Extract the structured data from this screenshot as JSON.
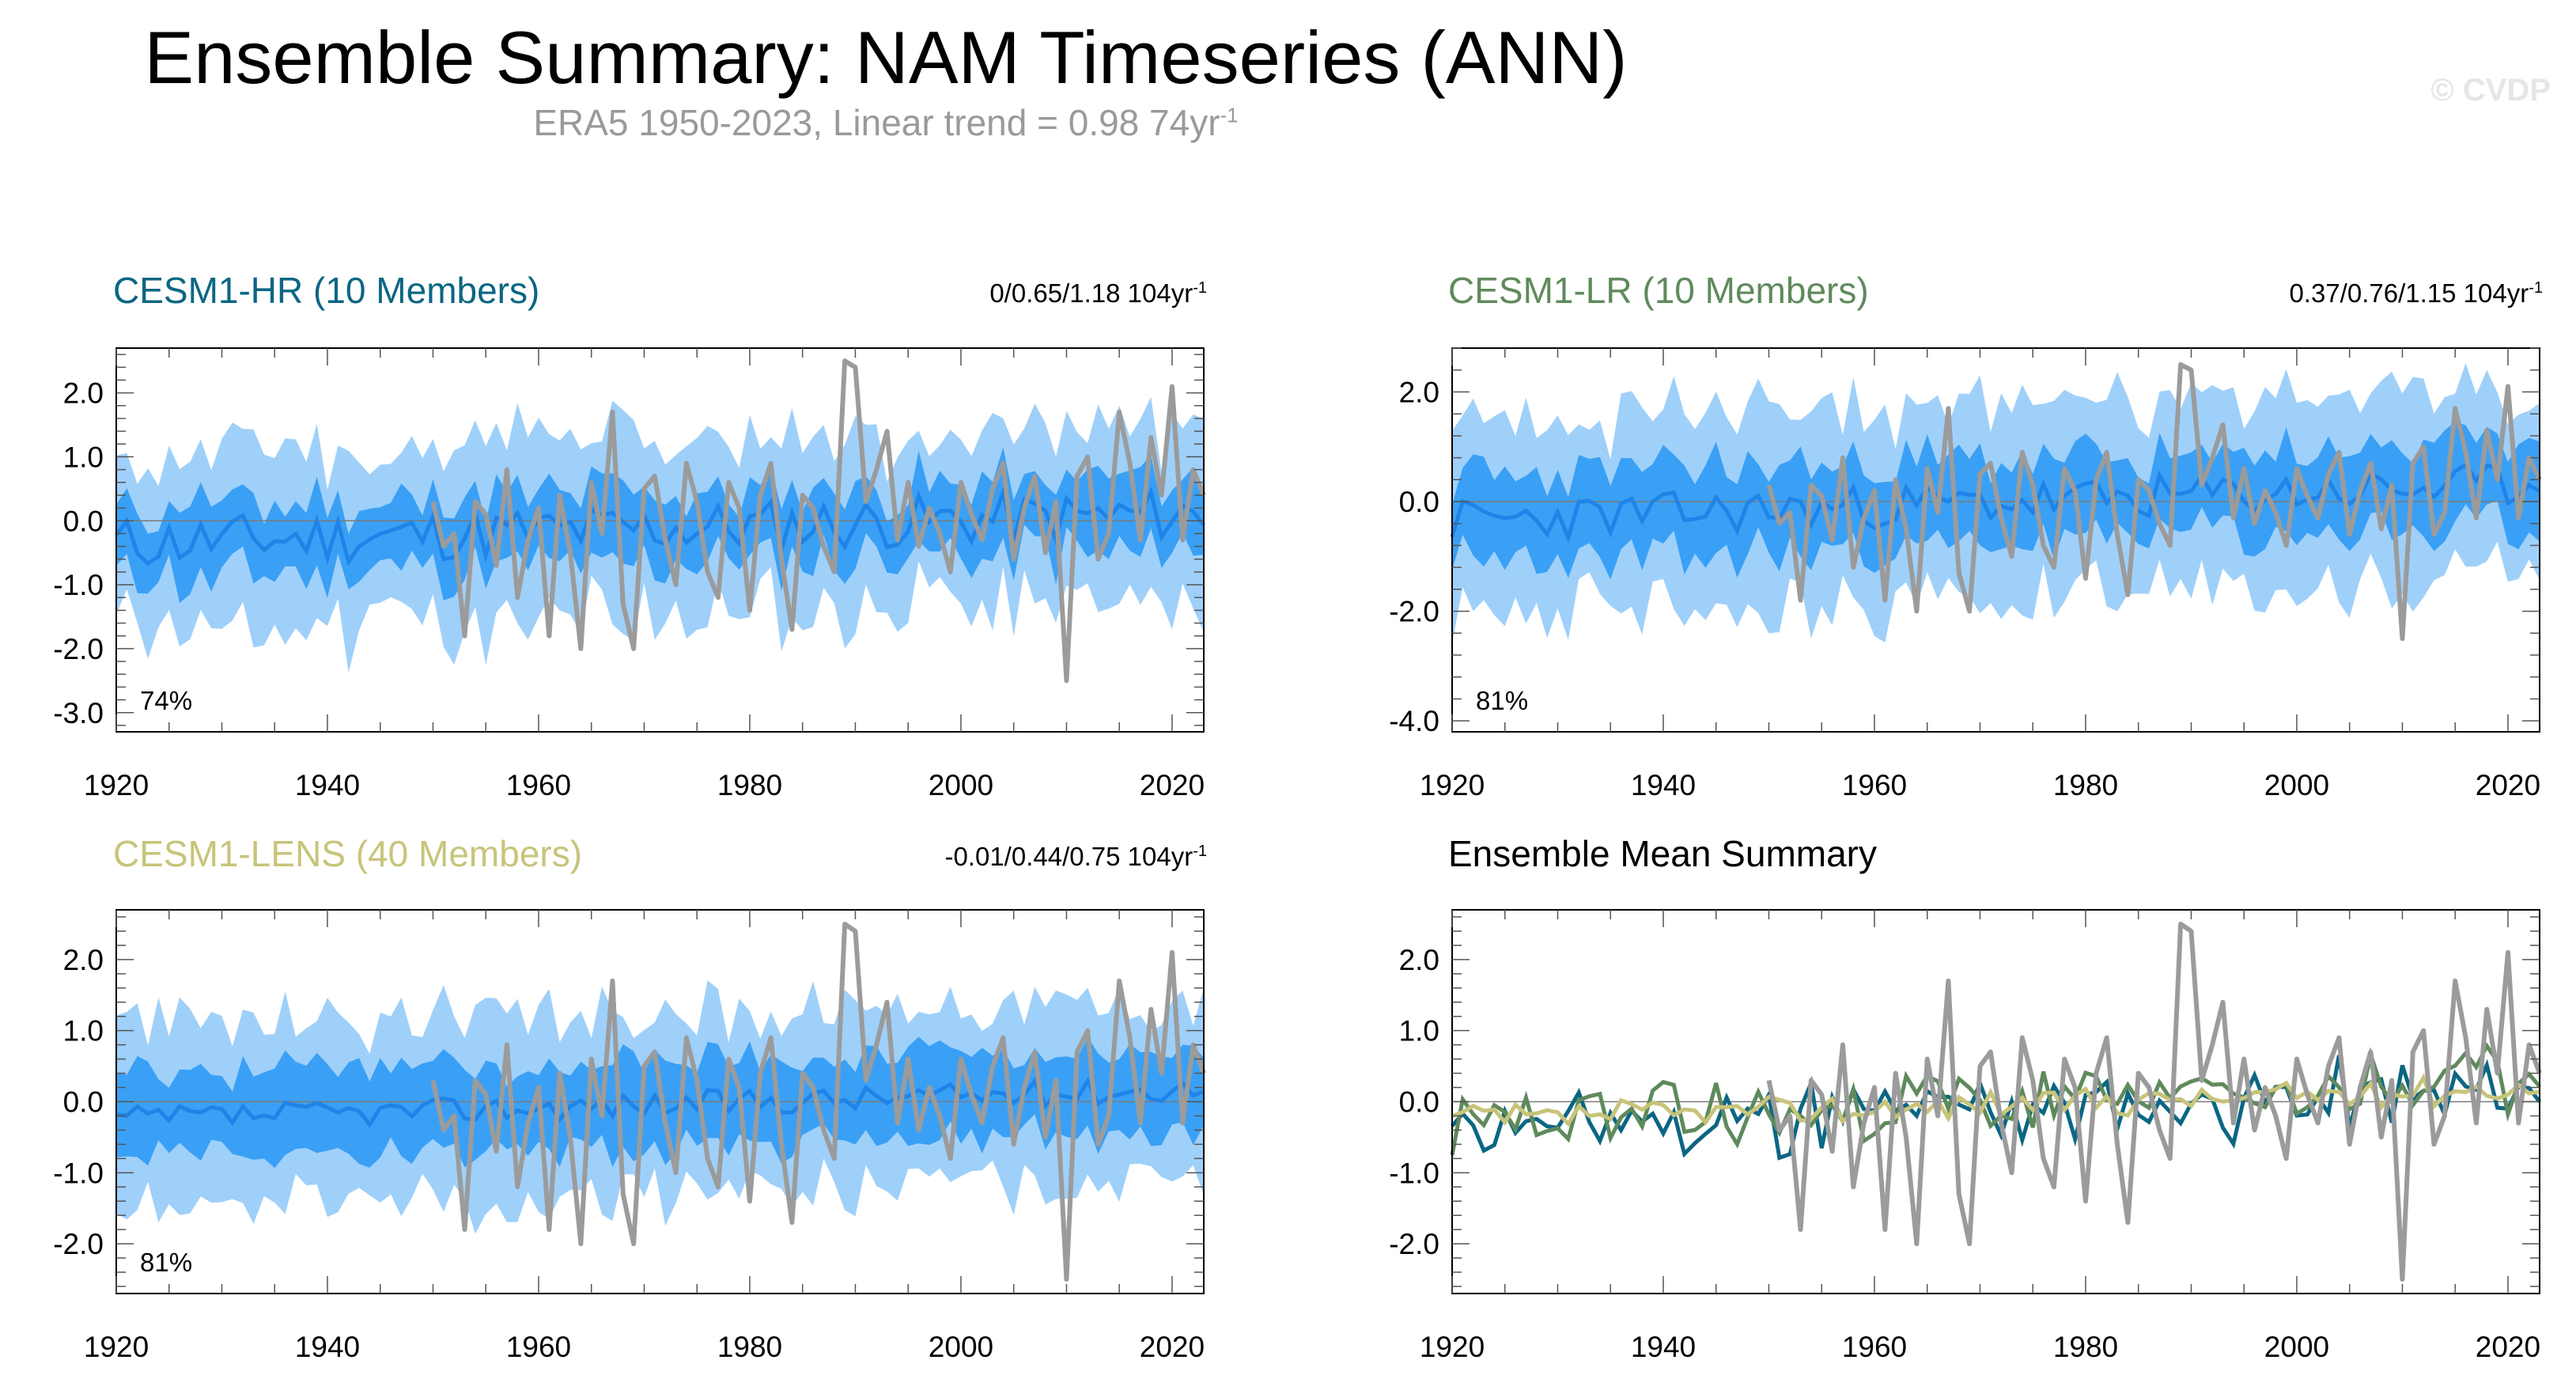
{
  "header": {
    "title": "Ensemble Summary: NAM Timeseries (ANN)",
    "subtitle_main": "ERA5 1950-2023, Linear trend = 0.98 74yr",
    "subtitle_sup": "-1",
    "watermark": "© CVDP"
  },
  "colors": {
    "hr": "#0b6683",
    "lr": "#5f8a5c",
    "lens": "#c8c47a",
    "obs": "#9b9b9b",
    "band_outer": "#9fd0fa",
    "band_inner": "#3aa0f5",
    "ens_mean": "#1f84e8"
  },
  "chart_data": [
    {
      "id": "hr",
      "type": "area",
      "title": "CESM1-HR (10 Members)",
      "trend_text": "0/0.65/1.18 104yr",
      "trend_sup": "-1",
      "pct_label": "74%",
      "xlim": [
        1920,
        2023
      ],
      "ylim": [
        -3.3,
        2.7
      ],
      "yticks": [
        -3.0,
        -2.0,
        -1.0,
        0.0,
        1.0,
        2.0
      ],
      "ytick_labels": [
        "-3.0",
        "-2.0",
        "-1.0",
        "0.0",
        "1.0",
        "2.0"
      ],
      "xticks": [
        1920,
        1940,
        1960,
        1980,
        2000,
        2020
      ],
      "xtick_labels": [
        "1920",
        "1940",
        "1960",
        "1980",
        "2000",
        "2020"
      ],
      "seed": 11,
      "trend": 0.0045,
      "offset": -0.35,
      "inner": 0.55,
      "outer": 1.35,
      "noise": 0.42
    },
    {
      "id": "lr",
      "type": "area",
      "title": "CESM1-LR (10 Members)",
      "trend_text": "0.37/0.76/1.15 104yr",
      "trend_sup": "-1",
      "pct_label": "81%",
      "xlim": [
        1920,
        2023
      ],
      "ylim": [
        -4.2,
        2.8
      ],
      "yticks": [
        -4.0,
        -2.0,
        0.0,
        2.0
      ],
      "ytick_labels": [
        "-4.0",
        "-2.0",
        "0.0",
        "2.0"
      ],
      "xticks": [
        1920,
        1940,
        1960,
        1980,
        2000,
        2020
      ],
      "xtick_labels": [
        "1920",
        "1940",
        "1960",
        "1980",
        "2000",
        "2020"
      ],
      "seed": 23,
      "trend": 0.0065,
      "offset": -0.35,
      "inner": 0.8,
      "outer": 1.7,
      "noise": 0.4
    },
    {
      "id": "lens",
      "type": "area",
      "title": "CESM1-LENS (40 Members)",
      "trend_text": "-0.01/0.44/0.75 104yr",
      "trend_sup": "-1",
      "pct_label": "81%",
      "xlim": [
        1920,
        2023
      ],
      "ylim": [
        -2.7,
        2.7
      ],
      "yticks": [
        -2.0,
        -1.0,
        0.0,
        1.0,
        2.0
      ],
      "ytick_labels": [
        "-2.0",
        "-1.0",
        "0.0",
        "1.0",
        "2.0"
      ],
      "xticks": [
        1920,
        1940,
        1960,
        1980,
        2000,
        2020
      ],
      "xtick_labels": [
        "1920",
        "1940",
        "1960",
        "1980",
        "2000",
        "2020"
      ],
      "seed": 37,
      "trend": 0.0042,
      "offset": -0.25,
      "inner": 0.6,
      "outer": 1.25,
      "noise": 0.18
    },
    {
      "id": "summary",
      "type": "line",
      "title": "Ensemble Mean Summary",
      "xlim": [
        1920,
        2023
      ],
      "ylim": [
        -2.7,
        2.7
      ],
      "yticks": [
        -2.0,
        -1.0,
        0.0,
        1.0,
        2.0
      ],
      "ytick_labels": [
        "-2.0",
        "-1.0",
        "0.0",
        "1.0",
        "2.0"
      ],
      "xticks": [
        1920,
        1940,
        1960,
        1980,
        2000,
        2020
      ],
      "xtick_labels": [
        "1920",
        "1940",
        "1960",
        "1980",
        "2000",
        "2020"
      ],
      "series_names": [
        "CESM1-HR",
        "CESM1-LR",
        "CESM1-LENS",
        "ERA5"
      ]
    }
  ],
  "obs_series": {
    "name": "ERA5",
    "x_start": 1950,
    "values": [
      0.3,
      -0.4,
      -0.2,
      -1.8,
      0.3,
      0.1,
      -0.7,
      0.8,
      -1.2,
      -0.3,
      0.2,
      -1.8,
      0.4,
      -0.5,
      -2.0,
      0.6,
      -0.2,
      1.7,
      -1.3,
      -2.0,
      0.5,
      0.7,
      -0.3,
      -1.0,
      0.9,
      0.3,
      -0.8,
      -1.2,
      0.6,
      0.2,
      -1.4,
      0.4,
      0.9,
      -0.6,
      -1.7,
      0.4,
      0.2,
      -0.4,
      -0.8,
      2.5,
      2.4,
      0.3,
      0.8,
      1.4,
      -0.3,
      0.6,
      -0.4,
      0.2,
      -0.2,
      -0.8,
      0.6,
      0.1,
      -0.3,
      0.5,
      0.9,
      -0.6,
      0.2,
      0.7,
      -0.5,
      0.3,
      -2.5,
      0.7,
      1.0,
      -0.6,
      -0.2,
      1.7,
      0.9,
      -0.3,
      1.3,
      0.4,
      2.1,
      -0.3,
      0.8,
      0.4
    ]
  }
}
